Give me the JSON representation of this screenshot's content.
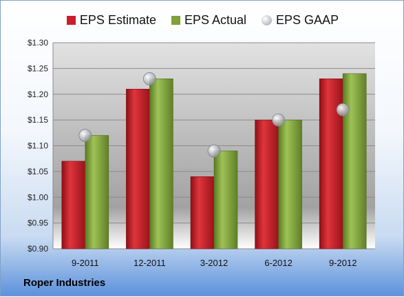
{
  "company": "Roper Industries",
  "chart_data": {
    "type": "bar",
    "categories": [
      "9-2011",
      "12-2011",
      "3-2012",
      "6-2012",
      "9-2012"
    ],
    "series": [
      {
        "name": "EPS Estimate",
        "type": "bar",
        "color": "#c8202a",
        "values": [
          1.07,
          1.21,
          1.04,
          1.15,
          1.23
        ]
      },
      {
        "name": "EPS Actual",
        "type": "bar",
        "color": "#7fa03a",
        "values": [
          1.12,
          1.23,
          1.09,
          1.15,
          1.24
        ]
      },
      {
        "name": "EPS GAAP",
        "type": "scatter",
        "color": "#aab0b8",
        "values": [
          1.12,
          1.23,
          1.09,
          1.15,
          1.17
        ]
      }
    ],
    "ylim": [
      0.9,
      1.3
    ],
    "yticks": [
      "$0.90",
      "$0.95",
      "$1.00",
      "$1.05",
      "$1.10",
      "$1.15",
      "$1.20",
      "$1.25",
      "$1.30"
    ],
    "grid": true,
    "legend": "top"
  }
}
